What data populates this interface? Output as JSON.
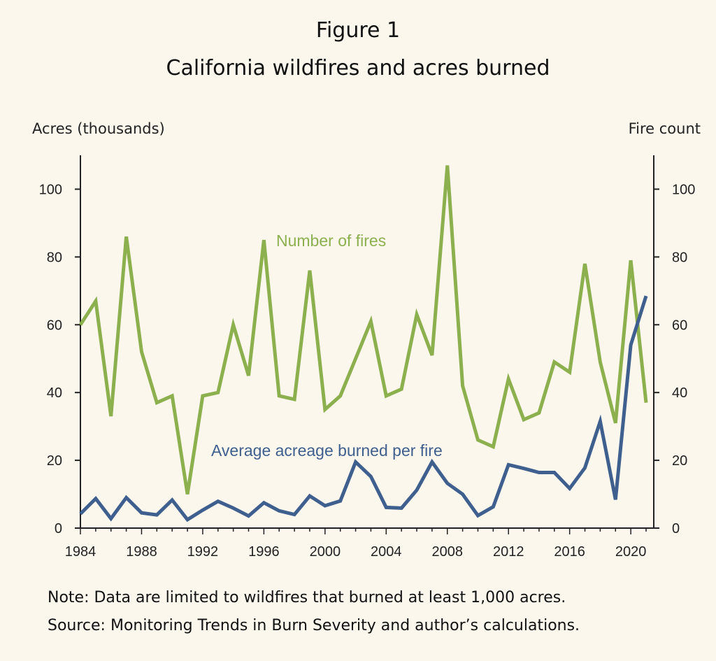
{
  "figure_label": "Figure 1",
  "title": "California wildfires and acres burned",
  "left_axis_title": "Acres (thousands)",
  "right_axis_title": "Fire count",
  "note": "Note: Data are limited to wildfires that burned at least 1,000 acres.",
  "source": "Source: Monitoring Trends in Burn Severity and author’s calculations.",
  "colors": {
    "fires": "#8db04f",
    "acreage": "#3f5f8f",
    "axis": "#222222",
    "background": "#fbf7ec"
  },
  "chart_data": {
    "type": "line",
    "title": "California wildfires and acres burned",
    "xlabel": "",
    "ylabel": "Acres (thousands)",
    "y2label": "Fire count",
    "xlim": [
      1984,
      2021
    ],
    "ylim": [
      0,
      110
    ],
    "y2lim": [
      0,
      110
    ],
    "x_ticks": [
      1984,
      1988,
      1992,
      1996,
      2000,
      2004,
      2008,
      2012,
      2016,
      2020
    ],
    "y_ticks": [
      0,
      20,
      40,
      60,
      80,
      100
    ],
    "x": [
      1984,
      1985,
      1986,
      1987,
      1988,
      1989,
      1990,
      1991,
      1992,
      1993,
      1994,
      1995,
      1996,
      1997,
      1998,
      1999,
      2000,
      2001,
      2002,
      2003,
      2004,
      2005,
      2006,
      2007,
      2008,
      2009,
      2010,
      2011,
      2012,
      2013,
      2014,
      2015,
      2016,
      2017,
      2018,
      2019,
      2020,
      2021
    ],
    "series": [
      {
        "name": "Number of fires",
        "axis": "right",
        "label": "Number of fires",
        "values": [
          60,
          67,
          33,
          86,
          52,
          37,
          39,
          10,
          39,
          40,
          60,
          45,
          85,
          39,
          38,
          76,
          35,
          39,
          50,
          61,
          39,
          41,
          63,
          51,
          107,
          42,
          26,
          24,
          44,
          32,
          34,
          49,
          46,
          78,
          49,
          31,
          79,
          37
        ]
      },
      {
        "name": "Average acreage burned per fire",
        "axis": "left",
        "label": "Average acreage burned per fire",
        "values": [
          4.2,
          8.7,
          2.8,
          9.0,
          4.5,
          3.9,
          8.3,
          2.5,
          5.3,
          7.9,
          5.9,
          3.6,
          7.5,
          5.1,
          4.0,
          9.5,
          6.6,
          8.0,
          19.5,
          15.2,
          6.1,
          5.9,
          11.2,
          19.5,
          13.2,
          10.0,
          3.7,
          6.3,
          18.7,
          17.6,
          16.4,
          16.4,
          11.7,
          17.8,
          31.5,
          8.4,
          54.0,
          68.5
        ]
      }
    ]
  }
}
